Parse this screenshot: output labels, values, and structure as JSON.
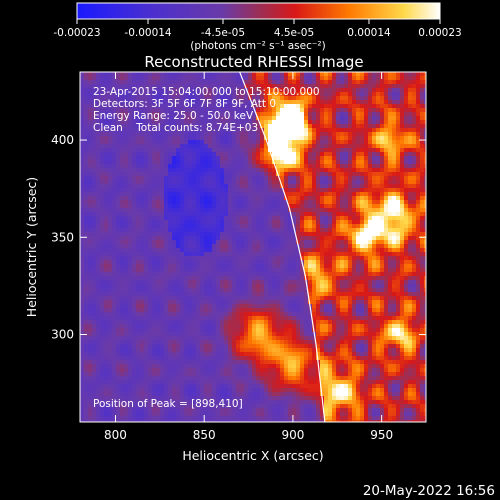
{
  "chart_data": {
    "type": "heatmap",
    "title": "Reconstructed RHESSI Image",
    "xlabel": "Heliocentric X (arcsec)",
    "ylabel": "Heliocentric Y (arcsec)",
    "xlim": [
      780,
      975
    ],
    "ylim": [
      255,
      435
    ],
    "x_ticks": [
      "800",
      "850",
      "900",
      "950"
    ],
    "y_ticks": [
      "300",
      "350",
      "400"
    ],
    "colorbar": {
      "range": [
        -0.00023,
        0.00023
      ],
      "tick_labels": [
        "-0.00023",
        "-0.00014",
        "-4.5e-05",
        "4.5e-05",
        "0.00014",
        "0.00023"
      ],
      "units": "(photons cm⁻² s⁻¹ asec⁻²)"
    },
    "annotations": {
      "time": "23-Apr-2015 15:04:00.000 to 15:10:00.000",
      "detectors": "Detectors: 3F 5F 6F 7F 8F 9F, Att 0",
      "energy": "Energy Range: 25.0 - 50.0 keV",
      "method": "Clean    Total counts: 8.74E+03",
      "peak": "Position of Peak = [898,410]"
    },
    "peak": {
      "x": 898,
      "y": 410
    },
    "limb_curve": [
      [
        870,
        435
      ],
      [
        885,
        400
      ],
      [
        898,
        365
      ],
      [
        907,
        330
      ],
      [
        913,
        295
      ],
      [
        918,
        255
      ]
    ],
    "footer": "20-May-2022 16:56"
  }
}
